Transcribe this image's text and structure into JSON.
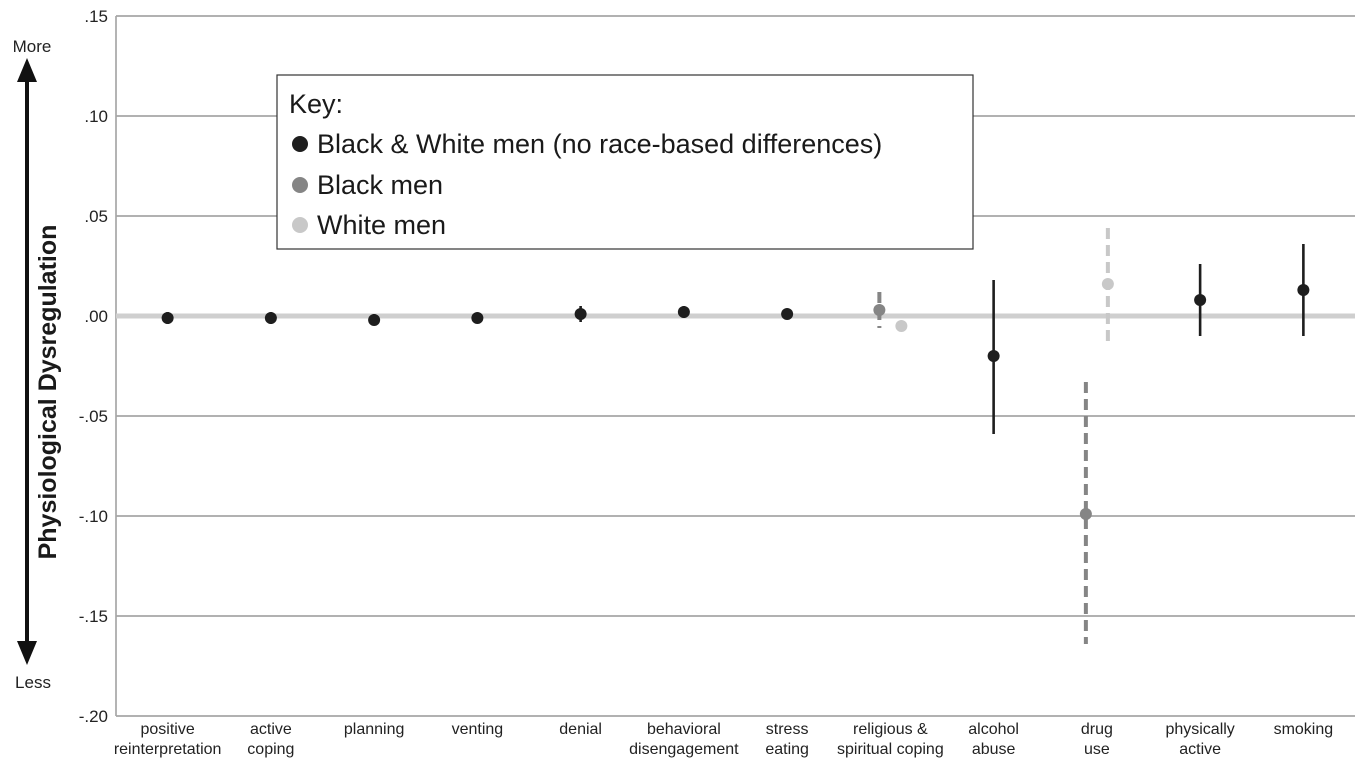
{
  "chart_data": {
    "type": "scatter",
    "subtype": "point-with-error-bars",
    "ylabel": "Physiological Dysregulation",
    "y_top_label": "More",
    "y_bottom_label": "Less",
    "ylim": [
      -0.2,
      0.15
    ],
    "yticks": [
      {
        "value": 0.15,
        "label": ".15"
      },
      {
        "value": 0.1,
        "label": ".10"
      },
      {
        "value": 0.05,
        "label": ".05"
      },
      {
        "value": 0.0,
        "label": ".00"
      },
      {
        "value": -0.05,
        "label": "-.05"
      },
      {
        "value": -0.1,
        "label": "-.10"
      },
      {
        "value": -0.15,
        "label": "-.15"
      },
      {
        "value": -0.2,
        "label": "-.20"
      }
    ],
    "grid": true,
    "legend_position": "top-left",
    "legend": {
      "title": "Key:",
      "entries": [
        {
          "key": "both",
          "label": "Black & White men (no race-based differences)"
        },
        {
          "key": "black",
          "label": "Black men"
        },
        {
          "key": "white",
          "label": "White men"
        }
      ]
    },
    "categories": [
      {
        "lines": [
          "positive",
          "reinterpretation"
        ]
      },
      {
        "lines": [
          "active",
          "coping"
        ]
      },
      {
        "lines": [
          "planning"
        ]
      },
      {
        "lines": [
          "venting"
        ]
      },
      {
        "lines": [
          "denial"
        ]
      },
      {
        "lines": [
          "behavioral",
          "disengagement"
        ]
      },
      {
        "lines": [
          "stress",
          "eating"
        ]
      },
      {
        "lines": [
          "religious &",
          "spiritual coping"
        ]
      },
      {
        "lines": [
          "alcohol",
          "abuse"
        ]
      },
      {
        "lines": [
          "drug",
          "use"
        ]
      },
      {
        "lines": [
          "physically",
          "active"
        ]
      },
      {
        "lines": [
          "smoking"
        ]
      }
    ],
    "points": [
      {
        "category": 0,
        "group": "both",
        "y": -0.001,
        "low": -0.004,
        "high": 0.002
      },
      {
        "category": 1,
        "group": "both",
        "y": -0.001,
        "low": -0.004,
        "high": 0.002
      },
      {
        "category": 2,
        "group": "both",
        "y": -0.002,
        "low": -0.004,
        "high": 0.001
      },
      {
        "category": 3,
        "group": "both",
        "y": -0.001,
        "low": -0.003,
        "high": 0.001
      },
      {
        "category": 4,
        "group": "both",
        "y": 0.001,
        "low": -0.003,
        "high": 0.005
      },
      {
        "category": 5,
        "group": "both",
        "y": 0.002,
        "low": -0.001,
        "high": 0.005
      },
      {
        "category": 6,
        "group": "both",
        "y": 0.001,
        "low": -0.001,
        "high": 0.003
      },
      {
        "category": 7,
        "group": "black",
        "y": 0.003,
        "low": -0.006,
        "high": 0.012
      },
      {
        "category": 7,
        "group": "white",
        "y": -0.005,
        "low": -0.005,
        "high": -0.005
      },
      {
        "category": 8,
        "group": "both",
        "y": -0.02,
        "low": -0.059,
        "high": 0.018
      },
      {
        "category": 9,
        "group": "black",
        "y": -0.099,
        "low": -0.164,
        "high": -0.033
      },
      {
        "category": 9,
        "group": "white",
        "y": 0.016,
        "low": -0.013,
        "high": 0.044
      },
      {
        "category": 10,
        "group": "both",
        "y": 0.008,
        "low": -0.01,
        "high": 0.026
      },
      {
        "category": 11,
        "group": "both",
        "y": 0.013,
        "low": -0.01,
        "high": 0.036
      }
    ],
    "colors": {
      "both": "#1e1e1e",
      "black": "#858585",
      "white": "#c8c8c8",
      "grid": "#a6a6a6",
      "zero_line": "#cfcfcf"
    }
  }
}
